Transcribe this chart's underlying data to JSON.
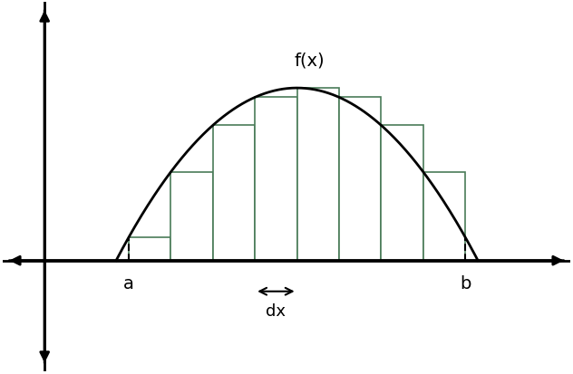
{
  "title": "f(x)",
  "label_a": "a",
  "label_b": "b",
  "label_dx": "dx",
  "curve_color": "#000000",
  "rect_edge_color": "#4a7c59",
  "rect_face_color": "#ffffff",
  "dashed_color": "#000000",
  "axis_color": "#000000",
  "x_start": 2.0,
  "x_end": 10.0,
  "n_rects": 8,
  "curve_peak_x": 5.5,
  "curve_amplitude": 2.8,
  "figsize": [
    6.32,
    4.14
  ],
  "dpi": 100,
  "xlim": [
    -1.0,
    12.5
  ],
  "ylim": [
    -1.8,
    4.2
  ],
  "yaxis_x": 0.0,
  "xaxis_y": 0.0
}
